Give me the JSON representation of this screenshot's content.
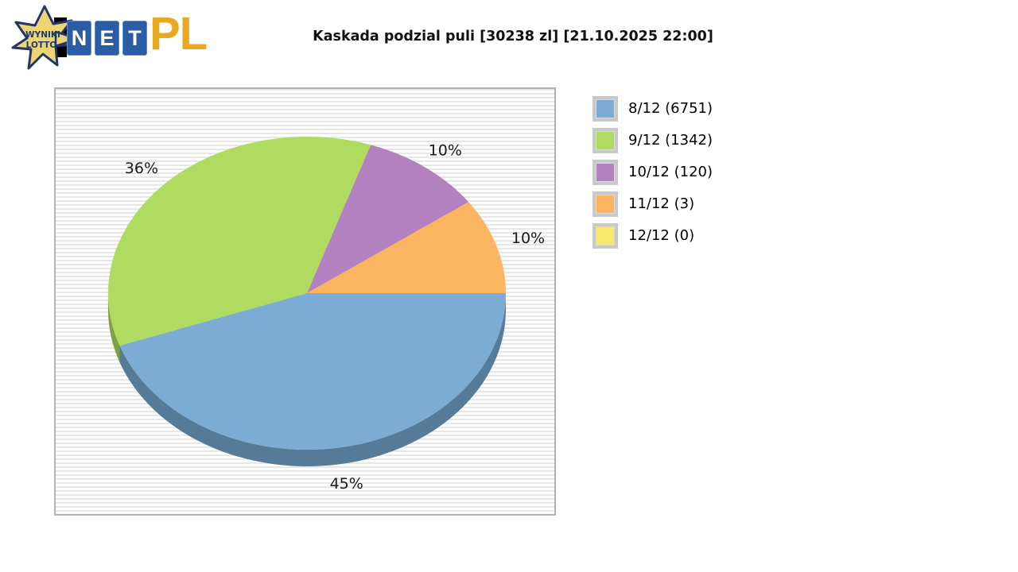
{
  "logo": {
    "star_line1": "WYNIKI",
    "star_line2": "LOTTO",
    "net_letters": {
      "n": "N",
      "e": "E",
      "t": "T"
    },
    "suffix": "PL",
    "colors": {
      "star_fill": "#edd571",
      "star_stroke": "#23356b",
      "tile_blue": "#2b5da6",
      "pl_gold": "#e8a81f"
    }
  },
  "header": {
    "title": "Kaskada podzial puli [30238 zl] [21.10.2025 22:00]"
  },
  "chart_data": {
    "type": "pie",
    "style": "3d",
    "title": "Kaskada podzial puli [30238 zl] [21.10.2025 22:00]",
    "pool_total": "30238 zl",
    "draw_datetime": "21.10.2025 22:00",
    "game": "Kaskada",
    "legend_position": "right",
    "direction": "clockwise",
    "start_angle_deg": 0,
    "slices": [
      {
        "tier": "8/12",
        "winners": 6751,
        "percent": 45,
        "percent_label": "45%",
        "legend_label": "8/12 (6751)",
        "color": "#7cacd4",
        "side_color": "#567b99"
      },
      {
        "tier": "9/12",
        "winners": 1342,
        "percent": 36,
        "percent_label": "36%",
        "legend_label": "9/12 (1342)",
        "color": "#aedb60",
        "side_color": "#7ca23f"
      },
      {
        "tier": "10/12",
        "winners": 120,
        "percent": 10,
        "percent_label": "10%",
        "legend_label": "10/12 (120)",
        "color": "#b381be",
        "side_color": "#845c8c"
      },
      {
        "tier": "11/12",
        "winners": 3,
        "percent": 10,
        "percent_label": "10%",
        "legend_label": "11/12 (3)",
        "color": "#fbb45f",
        "side_color": "#c08138"
      },
      {
        "tier": "12/12",
        "winners": 0,
        "percent": 0,
        "percent_label": "",
        "legend_label": "12/12 (0)",
        "color": "#f9e96b",
        "side_color": "#c0b040"
      }
    ]
  }
}
